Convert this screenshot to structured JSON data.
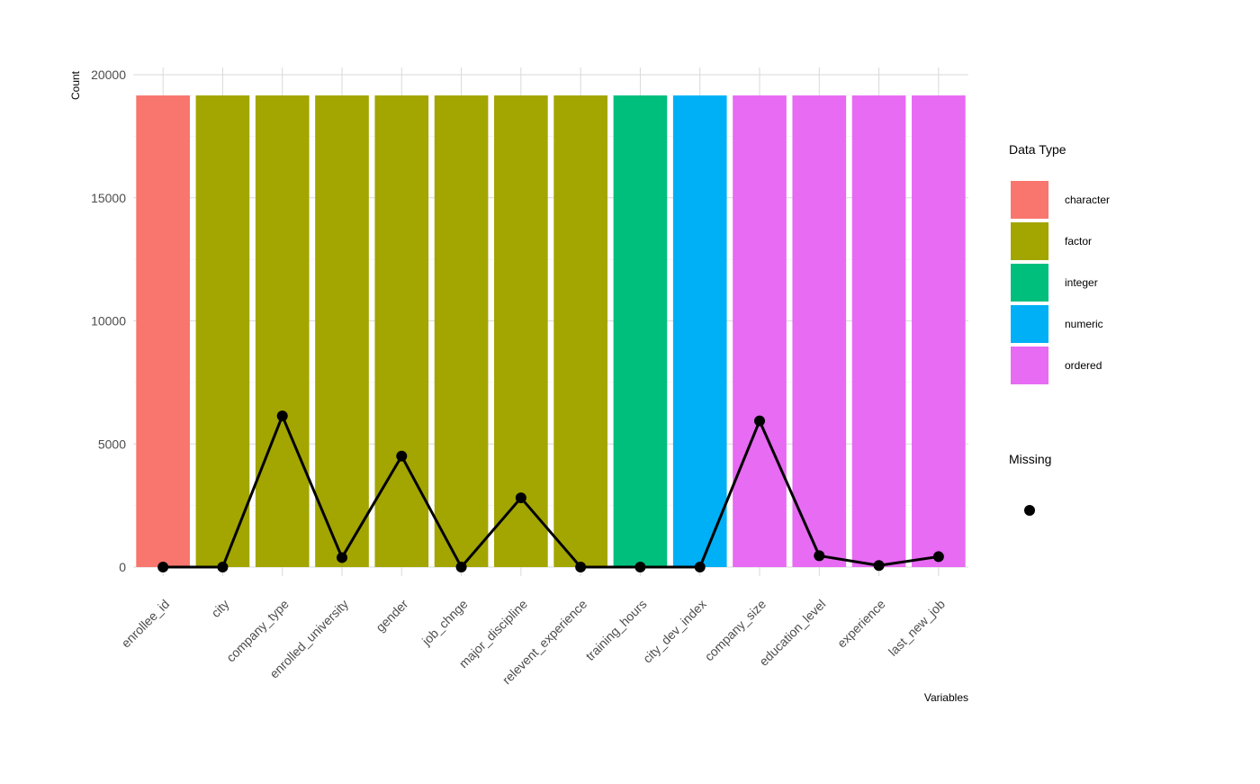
{
  "chart_data": {
    "type": "bar",
    "categories": [
      "enrollee_id",
      "city",
      "company_type",
      "enrolled_university",
      "gender",
      "job_chnge",
      "major_discipline",
      "relevent_experience",
      "training_hours",
      "city_dev_index",
      "company_size",
      "education_level",
      "experience",
      "last_new_job"
    ],
    "series": [
      {
        "values": [
          19158,
          19158,
          19158,
          19158,
          19158,
          19158,
          19158,
          19158,
          19158,
          19158,
          19158,
          19158,
          19158,
          19158
        ],
        "types": [
          "character",
          "factor",
          "factor",
          "factor",
          "factor",
          "factor",
          "factor",
          "factor",
          "integer",
          "numeric",
          "ordered",
          "ordered",
          "ordered",
          "ordered"
        ]
      },
      {
        "line": true,
        "values": [
          0,
          0,
          6140,
          386,
          4508,
          0,
          2813,
          0,
          0,
          0,
          5938,
          460,
          65,
          423
        ]
      }
    ],
    "ylabel": "Count",
    "xlabel": "Variables",
    "ylim": [
      0,
      20000
    ],
    "yticks": [
      0,
      5000,
      10000,
      15000,
      20000
    ],
    "ytick_labels": [
      "0",
      "5000",
      "10000",
      "15000",
      "20000"
    ],
    "grid": true,
    "legend": {
      "placement": "right",
      "fill_title": "Data Type",
      "fill_items": [
        {
          "label": "character",
          "color": "#F8766D"
        },
        {
          "label": "factor",
          "color": "#A3A500"
        },
        {
          "label": "integer",
          "color": "#00BF7D"
        },
        {
          "label": "numeric",
          "color": "#00B0F6"
        },
        {
          "label": "ordered",
          "color": "#E76BF3"
        }
      ],
      "point_title": "Missing"
    },
    "colors": {
      "character": "#F8766D",
      "factor": "#A3A500",
      "integer": "#00BF7D",
      "numeric": "#00B0F6",
      "ordered": "#E76BF3",
      "line": "#000000"
    }
  }
}
